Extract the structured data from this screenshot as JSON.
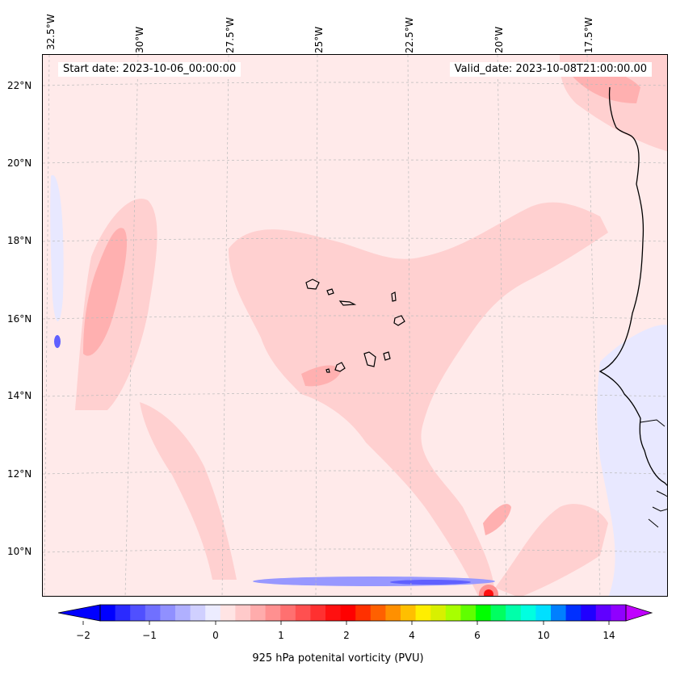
{
  "header": {
    "start_date": "Start date: 2023-10-06_00:00:00",
    "valid_date": "Valid_date: 2023-10-08T21:00:00.00"
  },
  "map": {
    "longitude_labels": [
      "32.5°W",
      "30°W",
      "27.5°W",
      "25°W",
      "22.5°W",
      "20°W",
      "17.5°W"
    ],
    "latitude_labels": [
      "22°N",
      "20°N",
      "18°N",
      "16°N",
      "14°N",
      "12°N",
      "10°N"
    ],
    "colors": {
      "background_field": "#ffeaea",
      "weak_positive": "#ffd0d0",
      "moderate_positive": "#ffb0b0",
      "negative_weak": "#e8e8ff",
      "negative_moderate": "#8080ff",
      "coastline": "#000000",
      "gridline": "#bbbbbb"
    }
  },
  "colorbar": {
    "label": "925 hPa potenital vorticity (PVU)",
    "tick_labels": [
      "−2",
      "−1",
      "0",
      "1",
      "2",
      "4",
      "6",
      "10",
      "14"
    ],
    "colors": [
      "#0000ff",
      "#2a2aff",
      "#5050ff",
      "#7070ff",
      "#9090ff",
      "#b0b0ff",
      "#d0d0ff",
      "#ececff",
      "#ffe4e4",
      "#ffcaca",
      "#ffacac",
      "#ff9090",
      "#ff7070",
      "#ff5050",
      "#ff3030",
      "#ff1010",
      "#ff0000",
      "#ff3000",
      "#ff6000",
      "#ff9000",
      "#ffbf00",
      "#ffee00",
      "#d8f000",
      "#a8ff00",
      "#60ff00",
      "#00ff00",
      "#00ff60",
      "#00ffaa",
      "#00ffe0",
      "#00e0ff",
      "#0080ff",
      "#0030ff",
      "#2000ff",
      "#6000ff",
      "#9000ff"
    ]
  }
}
